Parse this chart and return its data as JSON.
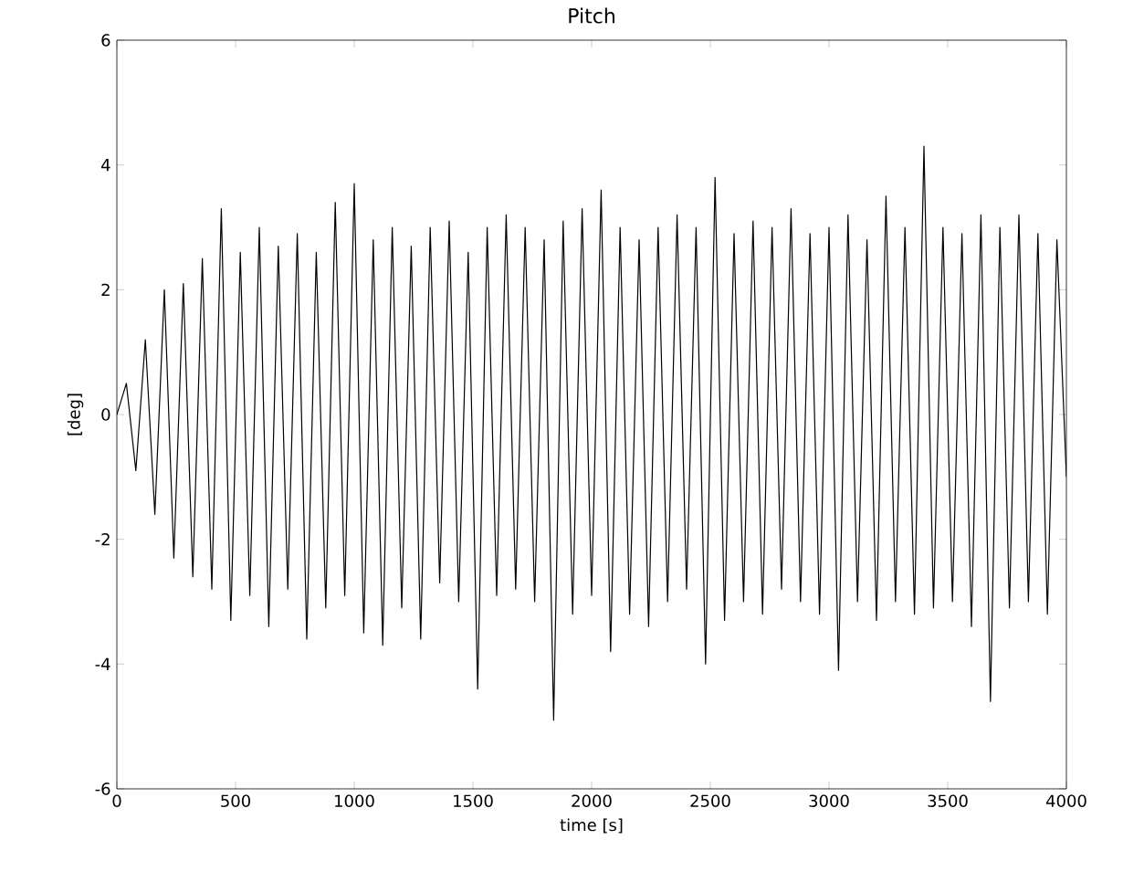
{
  "chart_data": {
    "type": "line",
    "title": "Pitch",
    "xlabel": "time [s]",
    "ylabel": "[deg]",
    "x": [
      0,
      40,
      80,
      120,
      160,
      200,
      240,
      280,
      320,
      360,
      400,
      440,
      480,
      520,
      560,
      600,
      640,
      680,
      720,
      760,
      800,
      840,
      880,
      920,
      960,
      1000,
      1040,
      1080,
      1120,
      1160,
      1200,
      1240,
      1280,
      1320,
      1360,
      1400,
      1440,
      1480,
      1520,
      1560,
      1600,
      1640,
      1680,
      1720,
      1760,
      1800,
      1840,
      1880,
      1920,
      1960,
      2000,
      2040,
      2080,
      2120,
      2160,
      2200,
      2240,
      2280,
      2320,
      2360,
      2400,
      2440,
      2480,
      2520,
      2560,
      2600,
      2640,
      2680,
      2720,
      2760,
      2800,
      2840,
      2880,
      2920,
      2960,
      3000,
      3040,
      3080,
      3120,
      3160,
      3200,
      3240,
      3280,
      3320,
      3360,
      3400,
      3440,
      3480,
      3520,
      3560,
      3600,
      3640,
      3680,
      3720,
      3760,
      3800,
      3840,
      3880,
      3920,
      3960,
      4000
    ],
    "series": [
      {
        "color": "#000000",
        "values": [
          0,
          0.5,
          -0.9,
          1.2,
          -1.6,
          2.0,
          -2.3,
          2.1,
          -2.6,
          2.5,
          -2.8,
          3.3,
          -3.3,
          2.6,
          -2.9,
          3.0,
          -3.4,
          2.7,
          -2.8,
          2.9,
          -3.6,
          2.6,
          -3.1,
          3.4,
          -2.9,
          3.7,
          -3.5,
          2.8,
          -3.7,
          3.0,
          -3.1,
          2.7,
          -3.6,
          3.0,
          -2.7,
          3.1,
          -3.0,
          2.6,
          -4.4,
          3.0,
          -2.9,
          3.2,
          -2.8,
          3.0,
          -3.0,
          2.8,
          -4.9,
          3.1,
          -3.2,
          3.3,
          -2.9,
          3.6,
          -3.8,
          3.0,
          -3.2,
          2.8,
          -3.4,
          3.0,
          -3.0,
          3.2,
          -2.8,
          3.0,
          -4.0,
          3.8,
          -3.3,
          2.9,
          -3.0,
          3.1,
          -3.2,
          3.0,
          -2.8,
          3.3,
          -3.0,
          2.9,
          -3.2,
          3.0,
          -4.1,
          3.2,
          -3.0,
          2.8,
          -3.3,
          3.5,
          -3.0,
          3.0,
          -3.2,
          4.3,
          -3.1,
          3.0,
          -3.0,
          2.9,
          -3.4,
          3.2,
          -4.6,
          3.0,
          -3.1,
          3.2,
          -3.0,
          2.9,
          -3.2,
          2.8,
          -1.0
        ]
      }
    ],
    "xlim": [
      0,
      4000
    ],
    "ylim": [
      -6,
      6
    ],
    "xticks": [
      0,
      500,
      1000,
      1500,
      2000,
      2500,
      3000,
      3500,
      4000
    ],
    "yticks": [
      -6,
      -4,
      -2,
      0,
      2,
      4,
      6
    ],
    "grid": false,
    "legend": false
  }
}
